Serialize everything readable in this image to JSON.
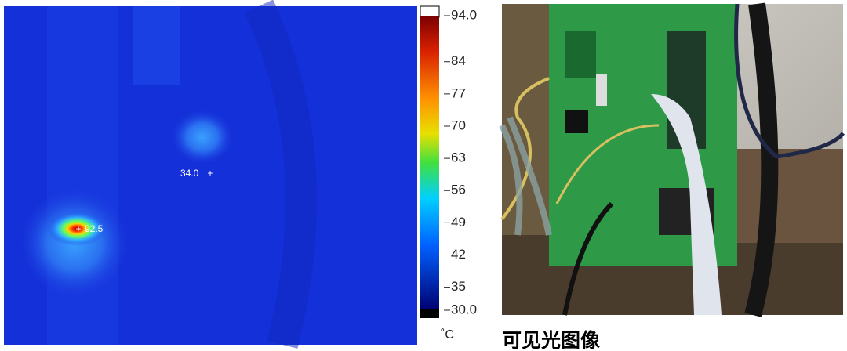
{
  "thermal": {
    "readings": [
      {
        "value": 34,
        "label": "34.0"
      },
      {
        "value": 92.5,
        "label": "92.5"
      }
    ],
    "colorbar": {
      "ticks": [
        {
          "value": 94,
          "label": "94.0"
        },
        84,
        77,
        70,
        63,
        56,
        49,
        42,
        35,
        {
          "value": 30,
          "label": "30.0"
        }
      ],
      "unit": "˚C"
    }
  },
  "visible": {
    "caption": "可见光图像"
  }
}
